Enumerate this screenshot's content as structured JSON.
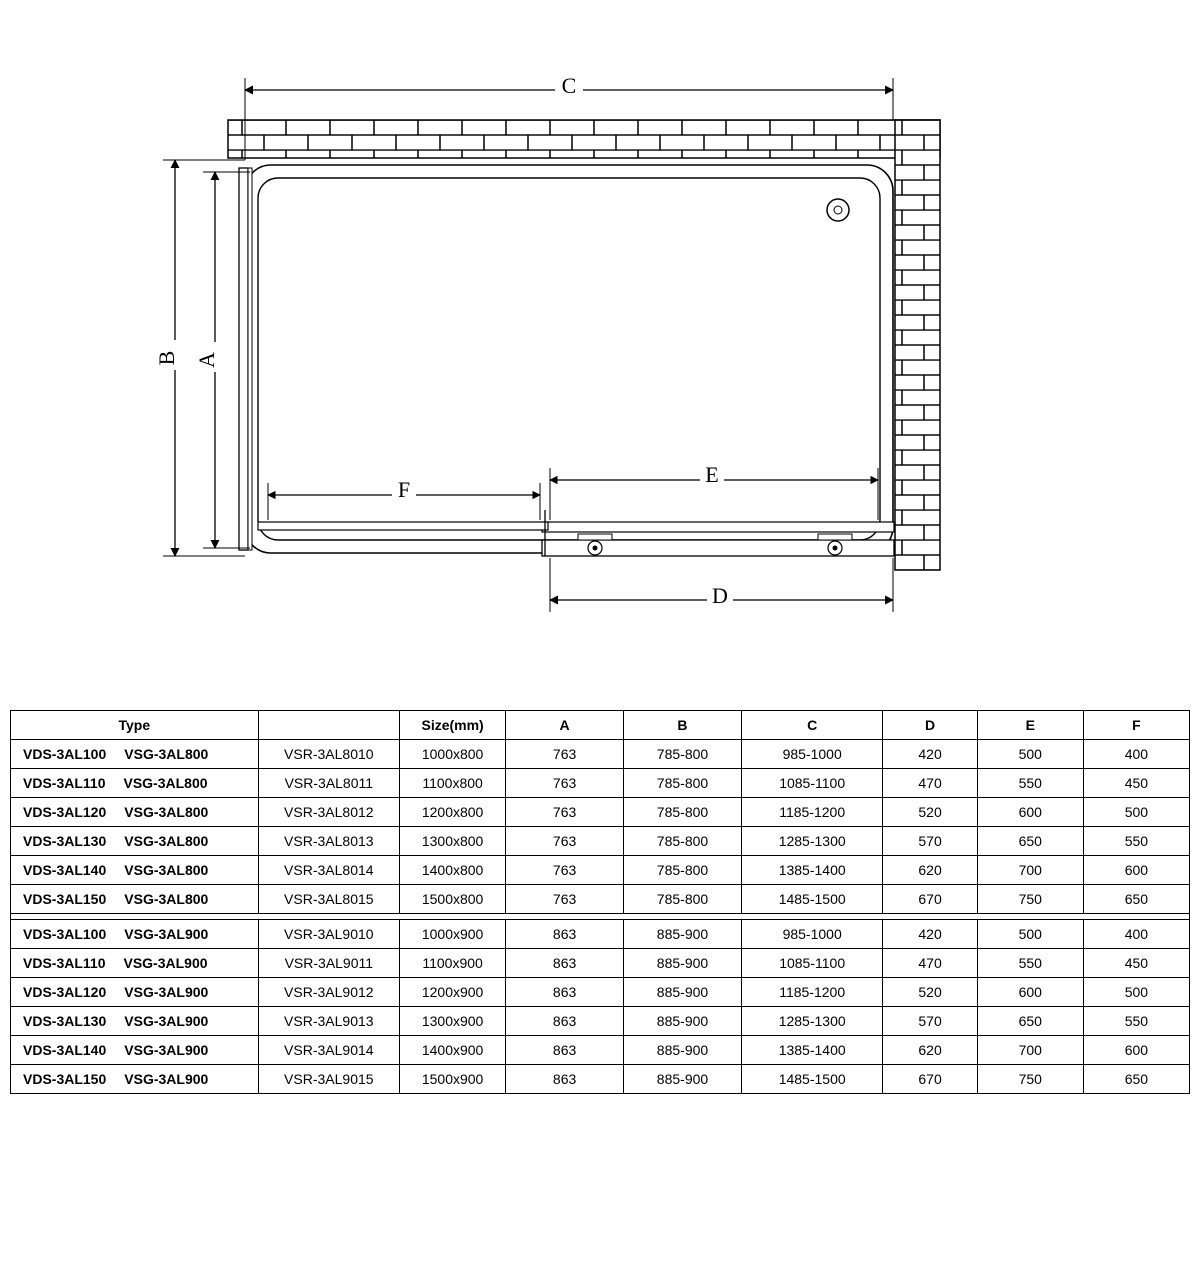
{
  "diagram": {
    "labels": {
      "A": "A",
      "B": "B",
      "C": "C",
      "D": "D",
      "E": "E",
      "F": "F"
    },
    "stroke": "#000000",
    "stroke_width": 1.5,
    "thin_width": 1,
    "background": "#ffffff"
  },
  "table": {
    "headers": [
      "Type",
      "",
      "Size(mm)",
      "A",
      "B",
      "C",
      "D",
      "E",
      "F"
    ],
    "col_widths_pct": [
      21,
      12,
      9,
      10,
      10,
      12,
      8,
      9,
      9
    ],
    "groups": [
      {
        "rows": [
          {
            "type1": "VDS-3AL100",
            "type2": "VSG-3AL800",
            "model": "VSR-3AL8010",
            "size": "1000x800",
            "A": "763",
            "B": "785-800",
            "C": "985-1000",
            "D": "420",
            "E": "500",
            "F": "400"
          },
          {
            "type1": "VDS-3AL110",
            "type2": "VSG-3AL800",
            "model": "VSR-3AL8011",
            "size": "1100x800",
            "A": "763",
            "B": "785-800",
            "C": "1085-1100",
            "D": "470",
            "E": "550",
            "F": "450"
          },
          {
            "type1": "VDS-3AL120",
            "type2": "VSG-3AL800",
            "model": "VSR-3AL8012",
            "size": "1200x800",
            "A": "763",
            "B": "785-800",
            "C": "1185-1200",
            "D": "520",
            "E": "600",
            "F": "500"
          },
          {
            "type1": "VDS-3AL130",
            "type2": "VSG-3AL800",
            "model": "VSR-3AL8013",
            "size": "1300x800",
            "A": "763",
            "B": "785-800",
            "C": "1285-1300",
            "D": "570",
            "E": "650",
            "F": "550"
          },
          {
            "type1": "VDS-3AL140",
            "type2": "VSG-3AL800",
            "model": "VSR-3AL8014",
            "size": "1400x800",
            "A": "763",
            "B": "785-800",
            "C": "1385-1400",
            "D": "620",
            "E": "700",
            "F": "600"
          },
          {
            "type1": "VDS-3AL150",
            "type2": "VSG-3AL800",
            "model": "VSR-3AL8015",
            "size": "1500x800",
            "A": "763",
            "B": "785-800",
            "C": "1485-1500",
            "D": "670",
            "E": "750",
            "F": "650"
          }
        ]
      },
      {
        "rows": [
          {
            "type1": "VDS-3AL100",
            "type2": "VSG-3AL900",
            "model": "VSR-3AL9010",
            "size": "1000x900",
            "A": "863",
            "B": "885-900",
            "C": "985-1000",
            "D": "420",
            "E": "500",
            "F": "400"
          },
          {
            "type1": "VDS-3AL110",
            "type2": "VSG-3AL900",
            "model": "VSR-3AL9011",
            "size": "1100x900",
            "A": "863",
            "B": "885-900",
            "C": "1085-1100",
            "D": "470",
            "E": "550",
            "F": "450"
          },
          {
            "type1": "VDS-3AL120",
            "type2": "VSG-3AL900",
            "model": "VSR-3AL9012",
            "size": "1200x900",
            "A": "863",
            "B": "885-900",
            "C": "1185-1200",
            "D": "520",
            "E": "600",
            "F": "500"
          },
          {
            "type1": "VDS-3AL130",
            "type2": "VSG-3AL900",
            "model": "VSR-3AL9013",
            "size": "1300x900",
            "A": "863",
            "B": "885-900",
            "C": "1285-1300",
            "D": "570",
            "E": "650",
            "F": "550"
          },
          {
            "type1": "VDS-3AL140",
            "type2": "VSG-3AL900",
            "model": "VSR-3AL9014",
            "size": "1400x900",
            "A": "863",
            "B": "885-900",
            "C": "1385-1400",
            "D": "620",
            "E": "700",
            "F": "600"
          },
          {
            "type1": "VDS-3AL150",
            "type2": "VSG-3AL900",
            "model": "VSR-3AL9015",
            "size": "1500x900",
            "A": "863",
            "B": "885-900",
            "C": "1485-1500",
            "D": "670",
            "E": "750",
            "F": "650"
          }
        ]
      }
    ]
  }
}
